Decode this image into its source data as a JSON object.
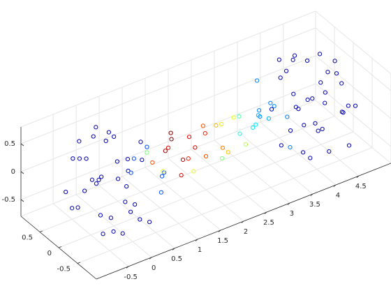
{
  "chart_data": {
    "type": "scatter3",
    "marker": "o",
    "colormap": "jet",
    "clim": [
      0,
      1
    ],
    "grid": true,
    "xlim": [
      -1.2,
      5.2
    ],
    "ylim": [
      -1,
      1
    ],
    "zlim": [
      -0.8,
      0.8
    ],
    "xticks": [
      -0.5,
      0,
      0.5,
      1,
      1.5,
      2,
      2.5,
      3,
      3.5,
      4,
      4.5
    ],
    "yticks": [
      -0.5,
      0,
      0.5
    ],
    "zticks": [
      -0.5,
      0,
      0.5
    ],
    "x": [
      -0.5,
      0.2,
      -0.7,
      0.6,
      0.1,
      -0.3,
      0.4,
      -0.8,
      0.0,
      0.3,
      -0.4,
      0.7,
      -0.2,
      0.5,
      -0.6,
      0.1,
      -0.1,
      0.8,
      -0.5,
      0.2,
      -0.3,
      0.3,
      0.0,
      -0.7,
      0.6,
      -0.2,
      0.4,
      -0.4,
      0.1,
      -0.8,
      0.5,
      -0.1,
      0.7,
      -0.6,
      0.2,
      0.0,
      -0.3,
      0.4,
      -0.5,
      0.8,
      4.7,
      4.0,
      4.9,
      3.6,
      4.1,
      4.5,
      3.8,
      5.0,
      4.2,
      3.9,
      4.6,
      3.5,
      4.4,
      3.7,
      4.8,
      4.1,
      4.3,
      3.4,
      4.7,
      4.0,
      4.5,
      3.9,
      4.2,
      4.9,
      3.6,
      4.4,
      3.8,
      4.6,
      4.1,
      5.0,
      3.7,
      4.3,
      3.5,
      4.8,
      4.0,
      4.2,
      4.5,
      3.8,
      4.7,
      3.4,
      0.8,
      0.9,
      1.0,
      1.1,
      1.2,
      1.3,
      1.4,
      1.5,
      1.6,
      1.7,
      1.8,
      1.9,
      2.0,
      2.1,
      2.2,
      2.3,
      2.4,
      2.5,
      2.6,
      2.7,
      2.8,
      2.9,
      3.0,
      3.1,
      3.2,
      3.3,
      3.4,
      1.25,
      1.65,
      2.35
    ],
    "y": [
      0.3,
      -0.5,
      0.1,
      0.2,
      0.7,
      -0.6,
      -0.2,
      -0.2,
      0.0,
      0.5,
      0.6,
      -0.4,
      -0.8,
      0.5,
      -0.4,
      0.2,
      0.8,
      0.1,
      0.5,
      -0.7,
      0.1,
      0.0,
      -0.3,
      -0.5,
      -0.6,
      0.3,
      0.4,
      -0.2,
      0.6,
      0.3,
      -0.1,
      -0.5,
      0.4,
      0.0,
      -0.2,
      0.4,
      -0.7,
      0.7,
      -0.6,
      -0.3,
      -0.3,
      0.5,
      -0.1,
      -0.2,
      -0.7,
      0.6,
      0.2,
      0.2,
      0.0,
      -0.5,
      -0.6,
      0.4,
      0.8,
      -0.5,
      0.4,
      -0.2,
      -0.8,
      -0.1,
      -0.5,
      0.7,
      -0.1,
      0.0,
      0.3,
      0.5,
      0.6,
      -0.3,
      -0.4,
      0.2,
      -0.6,
      -0.3,
      0.1,
      0.5,
      -0.4,
      0.0,
      0.2,
      -0.4,
      0.7,
      -0.7,
      0.6,
      0.3,
      0.1,
      -0.2,
      0.2,
      -0.1,
      0.1,
      -0.2,
      0.2,
      0.0,
      -0.2,
      0.1,
      0.2,
      -0.1,
      0.0,
      0.2,
      -0.2,
      0.1,
      -0.1,
      0.2,
      0.0,
      -0.2,
      0.1,
      0.2,
      -0.1,
      0.1,
      -0.2,
      0.2,
      0.0,
      0.0,
      -0.1,
      0.0
    ],
    "z": [
      0.4,
      0.6,
      -0.3,
      0.1,
      -0.4,
      -0.5,
      -0.7,
      0.2,
      0.8,
      0.5,
      0.2,
      -0.2,
      0.1,
      -0.4,
      0.5,
      -0.8,
      0.3,
      0.3,
      -0.6,
      -0.4,
      0.0,
      0.3,
      -0.2,
      -0.1,
      0.3,
      0.7,
      0.0,
      -0.7,
      0.6,
      -0.1,
      0.6,
      0.5,
      -0.3,
      0.6,
      -0.5,
      -0.2,
      0.4,
      0.2,
      -0.4,
      0.0,
      0.4,
      0.6,
      -0.3,
      0.1,
      -0.4,
      -0.5,
      -0.7,
      0.2,
      0.8,
      0.5,
      0.2,
      -0.2,
      0.1,
      -0.4,
      0.5,
      -0.8,
      0.3,
      0.3,
      -0.6,
      -0.4,
      0.0,
      0.3,
      -0.2,
      -0.1,
      0.3,
      0.7,
      0.0,
      -0.7,
      0.6,
      -0.1,
      0.6,
      0.5,
      -0.3,
      0.6,
      -0.5,
      -0.2,
      0.4,
      0.2,
      -0.4,
      0.0,
      0.2,
      0.0,
      -0.1,
      0.3,
      0.1,
      -0.2,
      0.3,
      -0.1,
      0.2,
      -0.2,
      0.1,
      0.3,
      -0.2,
      0.2,
      0.0,
      0.2,
      -0.2,
      0.1,
      0.3,
      -0.1,
      0.2,
      -0.2,
      0.1,
      -0.1,
      0.2,
      0.0,
      0.3,
      0.35,
      -0.3,
      -0.35
    ],
    "c": [
      0.05,
      0.05,
      0.05,
      0.2,
      0.05,
      0.05,
      0.05,
      0.05,
      0.05,
      0.05,
      0.05,
      0.2,
      0.05,
      0.05,
      0.05,
      0.05,
      0.05,
      0.2,
      0.05,
      0.05,
      0.05,
      0.05,
      0.05,
      0.05,
      0.2,
      0.05,
      0.05,
      0.05,
      0.05,
      0.05,
      0.05,
      0.05,
      0.2,
      0.05,
      0.05,
      0.05,
      0.05,
      0.05,
      0.05,
      0.2,
      0.05,
      0.05,
      0.05,
      0.25,
      0.05,
      0.05,
      0.05,
      0.05,
      0.05,
      0.05,
      0.05,
      0.25,
      0.05,
      0.05,
      0.05,
      0.05,
      0.05,
      0.25,
      0.05,
      0.05,
      0.05,
      0.05,
      0.05,
      0.05,
      0.25,
      0.05,
      0.05,
      0.05,
      0.05,
      0.05,
      0.05,
      0.05,
      0.25,
      0.05,
      0.05,
      0.05,
      0.05,
      0.05,
      0.05,
      0.25,
      0.5,
      0.6,
      0.8,
      0.9,
      0.95,
      0.9,
      1.0,
      0.95,
      0.9,
      0.85,
      0.9,
      0.85,
      0.8,
      0.8,
      0.75,
      0.7,
      0.68,
      0.65,
      0.6,
      0.55,
      0.45,
      0.4,
      0.35,
      0.35,
      0.3,
      0.3,
      0.25,
      1.0,
      0.6,
      0.5
    ]
  }
}
